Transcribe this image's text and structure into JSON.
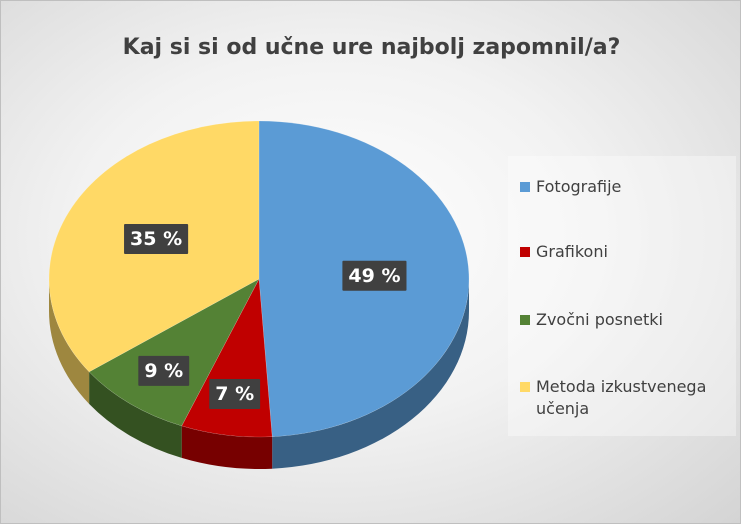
{
  "chart_data": {
    "type": "pie",
    "title": "Kaj si si od učne ure najbolj zapomnil/a?",
    "categories": [
      "Fotografije",
      "Grafikoni",
      "Zvočni posnetki",
      "Metoda izkustvenega učenja"
    ],
    "values": [
      49,
      7,
      9,
      35
    ],
    "value_labels": [
      "49 %",
      "7 %",
      "9 %",
      "35 %"
    ],
    "colors": [
      "#5b9bd5",
      "#c00000",
      "#548235",
      "#ffd966"
    ],
    "legend": "right"
  }
}
